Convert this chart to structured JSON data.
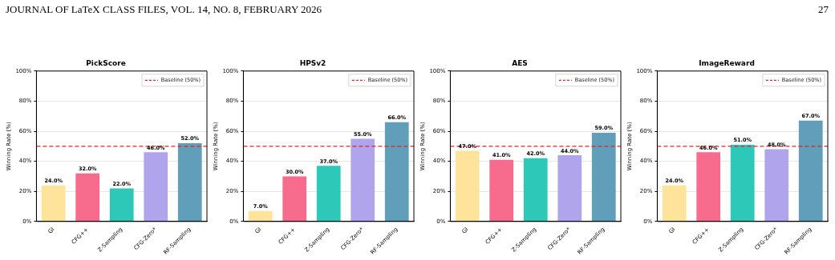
{
  "chart_data": [
    {
      "type": "bar",
      "title": "PickScore",
      "ylabel": "Winning Rate (%)",
      "annotations": [
        "JOURNAL OF LaTeX CLASS FILES, VOL. 14, NO. 8, FEBRUARY 2026",
        "27"
      ],
      "categories": [
        "GI",
        "CFG++",
        "Z-Sampling",
        "CFG-Zero*",
        "RF-Sampling"
      ],
      "values": [
        24,
        32,
        22,
        46,
        52
      ],
      "value_labels": [
        "24.0%",
        "32.0%",
        "22.0%",
        "46.0%",
        "52.0%"
      ],
      "colors": [
        "#fde49a",
        "#f76c8c",
        "#2ec8b8",
        "#b0a4ec",
        "#609eba"
      ],
      "ylim": [
        0,
        100
      ],
      "yticks": [
        {
          "value": 0,
          "label": "0%"
        },
        {
          "value": 20,
          "label": "20%"
        },
        {
          "value": 40,
          "label": "40%"
        },
        {
          "value": 60,
          "label": "60%"
        },
        {
          "value": 80,
          "label": "80%"
        },
        {
          "value": 100,
          "label": "100%"
        }
      ],
      "grid": "y",
      "legend": "top right",
      "ref_lines": [
        {
          "axis": "y",
          "value": 50,
          "label": "Baseline (50%)",
          "color": "#d62728",
          "line_style": "dashed"
        }
      ]
    },
    {
      "type": "bar",
      "title": "HPSv2",
      "ylabel": "Winning Rate (%)",
      "categories": [
        "GI",
        "CFG++",
        "Z-Sampling",
        "CFG-Zero*",
        "RF-Sampling"
      ],
      "values": [
        7,
        30,
        37,
        55,
        66
      ],
      "value_labels": [
        "7.0%",
        "30.0%",
        "37.0%",
        "55.0%",
        "66.0%"
      ],
      "colors": [
        "#fde49a",
        "#f76c8c",
        "#2ec8b8",
        "#b0a4ec",
        "#609eba"
      ],
      "ylim": [
        0,
        100
      ],
      "yticks": [
        {
          "value": 0,
          "label": "0%"
        },
        {
          "value": 20,
          "label": "20%"
        },
        {
          "value": 40,
          "label": "40%"
        },
        {
          "value": 60,
          "label": "60%"
        },
        {
          "value": 80,
          "label": "80%"
        },
        {
          "value": 100,
          "label": "100%"
        }
      ],
      "grid": "y",
      "legend": "top right",
      "ref_lines": [
        {
          "axis": "y",
          "value": 50,
          "label": "Baseline (50%)",
          "color": "#d62728",
          "line_style": "dashed"
        }
      ]
    },
    {
      "type": "bar",
      "title": "AES",
      "ylabel": "Winning Rate (%)",
      "categories": [
        "GI",
        "CFG++",
        "Z-Sampling",
        "CFG-Zero*",
        "RF-Sampling"
      ],
      "values": [
        47,
        41,
        42,
        44,
        59
      ],
      "value_labels": [
        "47.0%",
        "41.0%",
        "42.0%",
        "44.0%",
        "59.0%"
      ],
      "colors": [
        "#fde49a",
        "#f76c8c",
        "#2ec8b8",
        "#b0a4ec",
        "#609eba"
      ],
      "ylim": [
        0,
        100
      ],
      "yticks": [
        {
          "value": 0,
          "label": "0%"
        },
        {
          "value": 20,
          "label": "20%"
        },
        {
          "value": 40,
          "label": "40%"
        },
        {
          "value": 60,
          "label": "60%"
        },
        {
          "value": 80,
          "label": "80%"
        },
        {
          "value": 100,
          "label": "100%"
        }
      ],
      "grid": "y",
      "legend": "top right",
      "ref_lines": [
        {
          "axis": "y",
          "value": 50,
          "label": "Baseline (50%)",
          "color": "#d62728",
          "line_style": "dashed"
        }
      ]
    },
    {
      "type": "bar",
      "title": "ImageReward",
      "ylabel": "Winning Rate (%)",
      "categories": [
        "GI",
        "CFG++",
        "Z-Sampling",
        "CFG-Zero*",
        "RF-Sampling"
      ],
      "values": [
        24,
        46,
        51,
        48,
        67
      ],
      "value_labels": [
        "24.0%",
        "46.0%",
        "51.0%",
        "48.0%",
        "67.0%"
      ],
      "colors": [
        "#fde49a",
        "#f76c8c",
        "#2ec8b8",
        "#b0a4ec",
        "#609eba"
      ],
      "ylim": [
        0,
        100
      ],
      "yticks": [
        {
          "value": 0,
          "label": "0%"
        },
        {
          "value": 20,
          "label": "20%"
        },
        {
          "value": 40,
          "label": "40%"
        },
        {
          "value": 60,
          "label": "60%"
        },
        {
          "value": 80,
          "label": "80%"
        },
        {
          "value": 100,
          "label": "100%"
        }
      ],
      "grid": "y",
      "legend": "top right",
      "ref_lines": [
        {
          "axis": "y",
          "value": 50,
          "label": "Baseline (50%)",
          "color": "#d62728",
          "line_style": "dashed"
        }
      ]
    }
  ]
}
